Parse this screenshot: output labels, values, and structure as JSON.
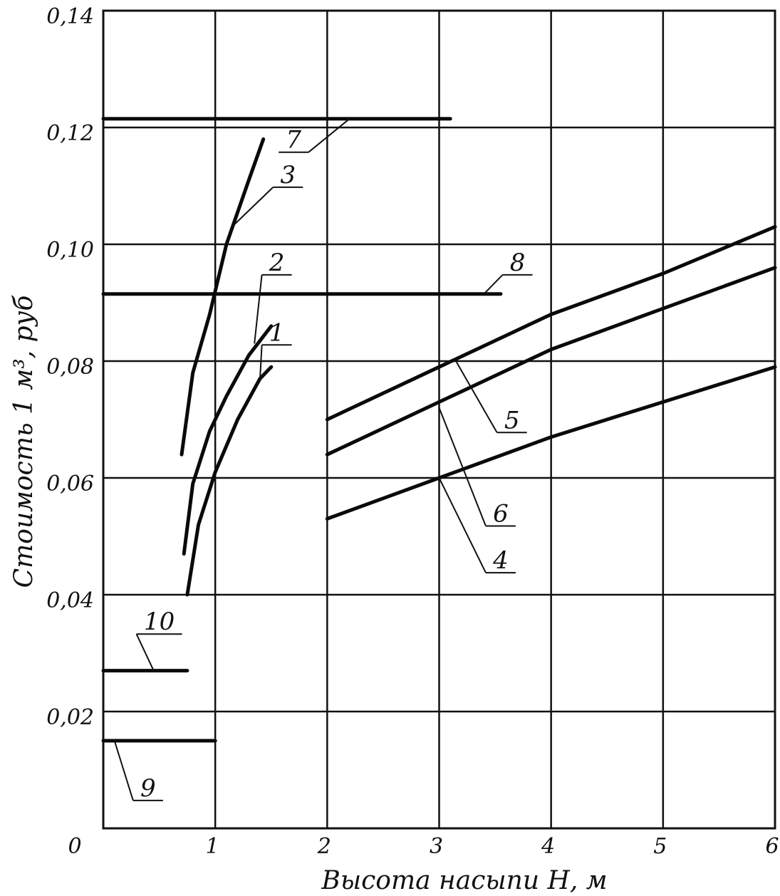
{
  "chart_data": {
    "type": "line",
    "xlabel": "Высота насыпи H, м",
    "ylabel": "Стоимость 1 м³, руб",
    "xlim": [
      0,
      6
    ],
    "ylim": [
      0,
      0.14
    ],
    "grid": true,
    "x_ticks": [
      {
        "value": 0,
        "label": "0"
      },
      {
        "value": 1,
        "label": "1"
      },
      {
        "value": 2,
        "label": "2"
      },
      {
        "value": 3,
        "label": "3"
      },
      {
        "value": 4,
        "label": "4"
      },
      {
        "value": 5,
        "label": "5"
      },
      {
        "value": 6,
        "label": "6"
      }
    ],
    "y_ticks": [
      {
        "value": 0.02,
        "label": "0,02"
      },
      {
        "value": 0.04,
        "label": "0,04"
      },
      {
        "value": 0.06,
        "label": "0,06"
      },
      {
        "value": 0.08,
        "label": "0,08"
      },
      {
        "value": 0.1,
        "label": "0,10"
      },
      {
        "value": 0.12,
        "label": "0,12"
      },
      {
        "value": 0.14,
        "label": "0,14"
      }
    ],
    "series": [
      {
        "name": "1",
        "points": [
          [
            0.75,
            0.04
          ],
          [
            0.85,
            0.052
          ],
          [
            1.0,
            0.061
          ],
          [
            1.2,
            0.07
          ],
          [
            1.4,
            0.077
          ],
          [
            1.5,
            0.079
          ]
        ]
      },
      {
        "name": "2",
        "points": [
          [
            0.72,
            0.047
          ],
          [
            0.8,
            0.059
          ],
          [
            0.95,
            0.068
          ],
          [
            1.1,
            0.074
          ],
          [
            1.3,
            0.081
          ],
          [
            1.5,
            0.086
          ]
        ]
      },
      {
        "name": "3",
        "points": [
          [
            0.7,
            0.064
          ],
          [
            0.8,
            0.078
          ],
          [
            0.95,
            0.088
          ],
          [
            1.1,
            0.1
          ],
          [
            1.3,
            0.111
          ],
          [
            1.43,
            0.118
          ]
        ]
      },
      {
        "name": "4",
        "points": [
          [
            2,
            0.053
          ],
          [
            3,
            0.06
          ],
          [
            4,
            0.067
          ],
          [
            5,
            0.073
          ],
          [
            6,
            0.079
          ]
        ]
      },
      {
        "name": "5",
        "points": [
          [
            2,
            0.07
          ],
          [
            3,
            0.079
          ],
          [
            4,
            0.088
          ],
          [
            5,
            0.095
          ],
          [
            6,
            0.103
          ]
        ]
      },
      {
        "name": "6",
        "points": [
          [
            2,
            0.064
          ],
          [
            3,
            0.073
          ],
          [
            4,
            0.082
          ],
          [
            5,
            0.089
          ],
          [
            6,
            0.096
          ]
        ]
      },
      {
        "name": "7",
        "points": [
          [
            0,
            0.1215
          ],
          [
            3.1,
            0.1215
          ]
        ]
      },
      {
        "name": "8",
        "points": [
          [
            0,
            0.0915
          ],
          [
            3.55,
            0.0915
          ]
        ]
      },
      {
        "name": "9",
        "points": [
          [
            0,
            0.015
          ],
          [
            1,
            0.015
          ]
        ]
      },
      {
        "name": "10",
        "points": [
          [
            0,
            0.027
          ],
          [
            0.75,
            0.027
          ]
        ]
      }
    ],
    "annotations": [
      {
        "label": "1",
        "x": 1.55,
        "y": 0.0835,
        "target": [
          1.4,
          0.077
        ]
      },
      {
        "label": "2",
        "x": 1.55,
        "y": 0.0955,
        "target": [
          1.35,
          0.083
        ]
      },
      {
        "label": "3",
        "x": 1.65,
        "y": 0.1105,
        "target": [
          1.15,
          0.103
        ]
      },
      {
        "label": "4",
        "x": 3.55,
        "y": 0.0445,
        "target": [
          3.0,
          0.06
        ]
      },
      {
        "label": "5",
        "x": 3.65,
        "y": 0.0685,
        "target": [
          3.15,
          0.08
        ]
      },
      {
        "label": "6",
        "x": 3.55,
        "y": 0.0525,
        "target": [
          3.0,
          0.072
        ]
      },
      {
        "label": "7",
        "x": 1.7,
        "y": 0.1165,
        "target": [
          2.2,
          0.1215
        ]
      },
      {
        "label": "8",
        "x": 3.7,
        "y": 0.0955,
        "target": [
          3.4,
          0.0915
        ]
      },
      {
        "label": "9",
        "x": 0.4,
        "y": 0.0055,
        "target": [
          0.1,
          0.015
        ]
      },
      {
        "label": "10",
        "x": 0.5,
        "y": 0.034,
        "target": [
          0.45,
          0.027
        ]
      }
    ]
  }
}
